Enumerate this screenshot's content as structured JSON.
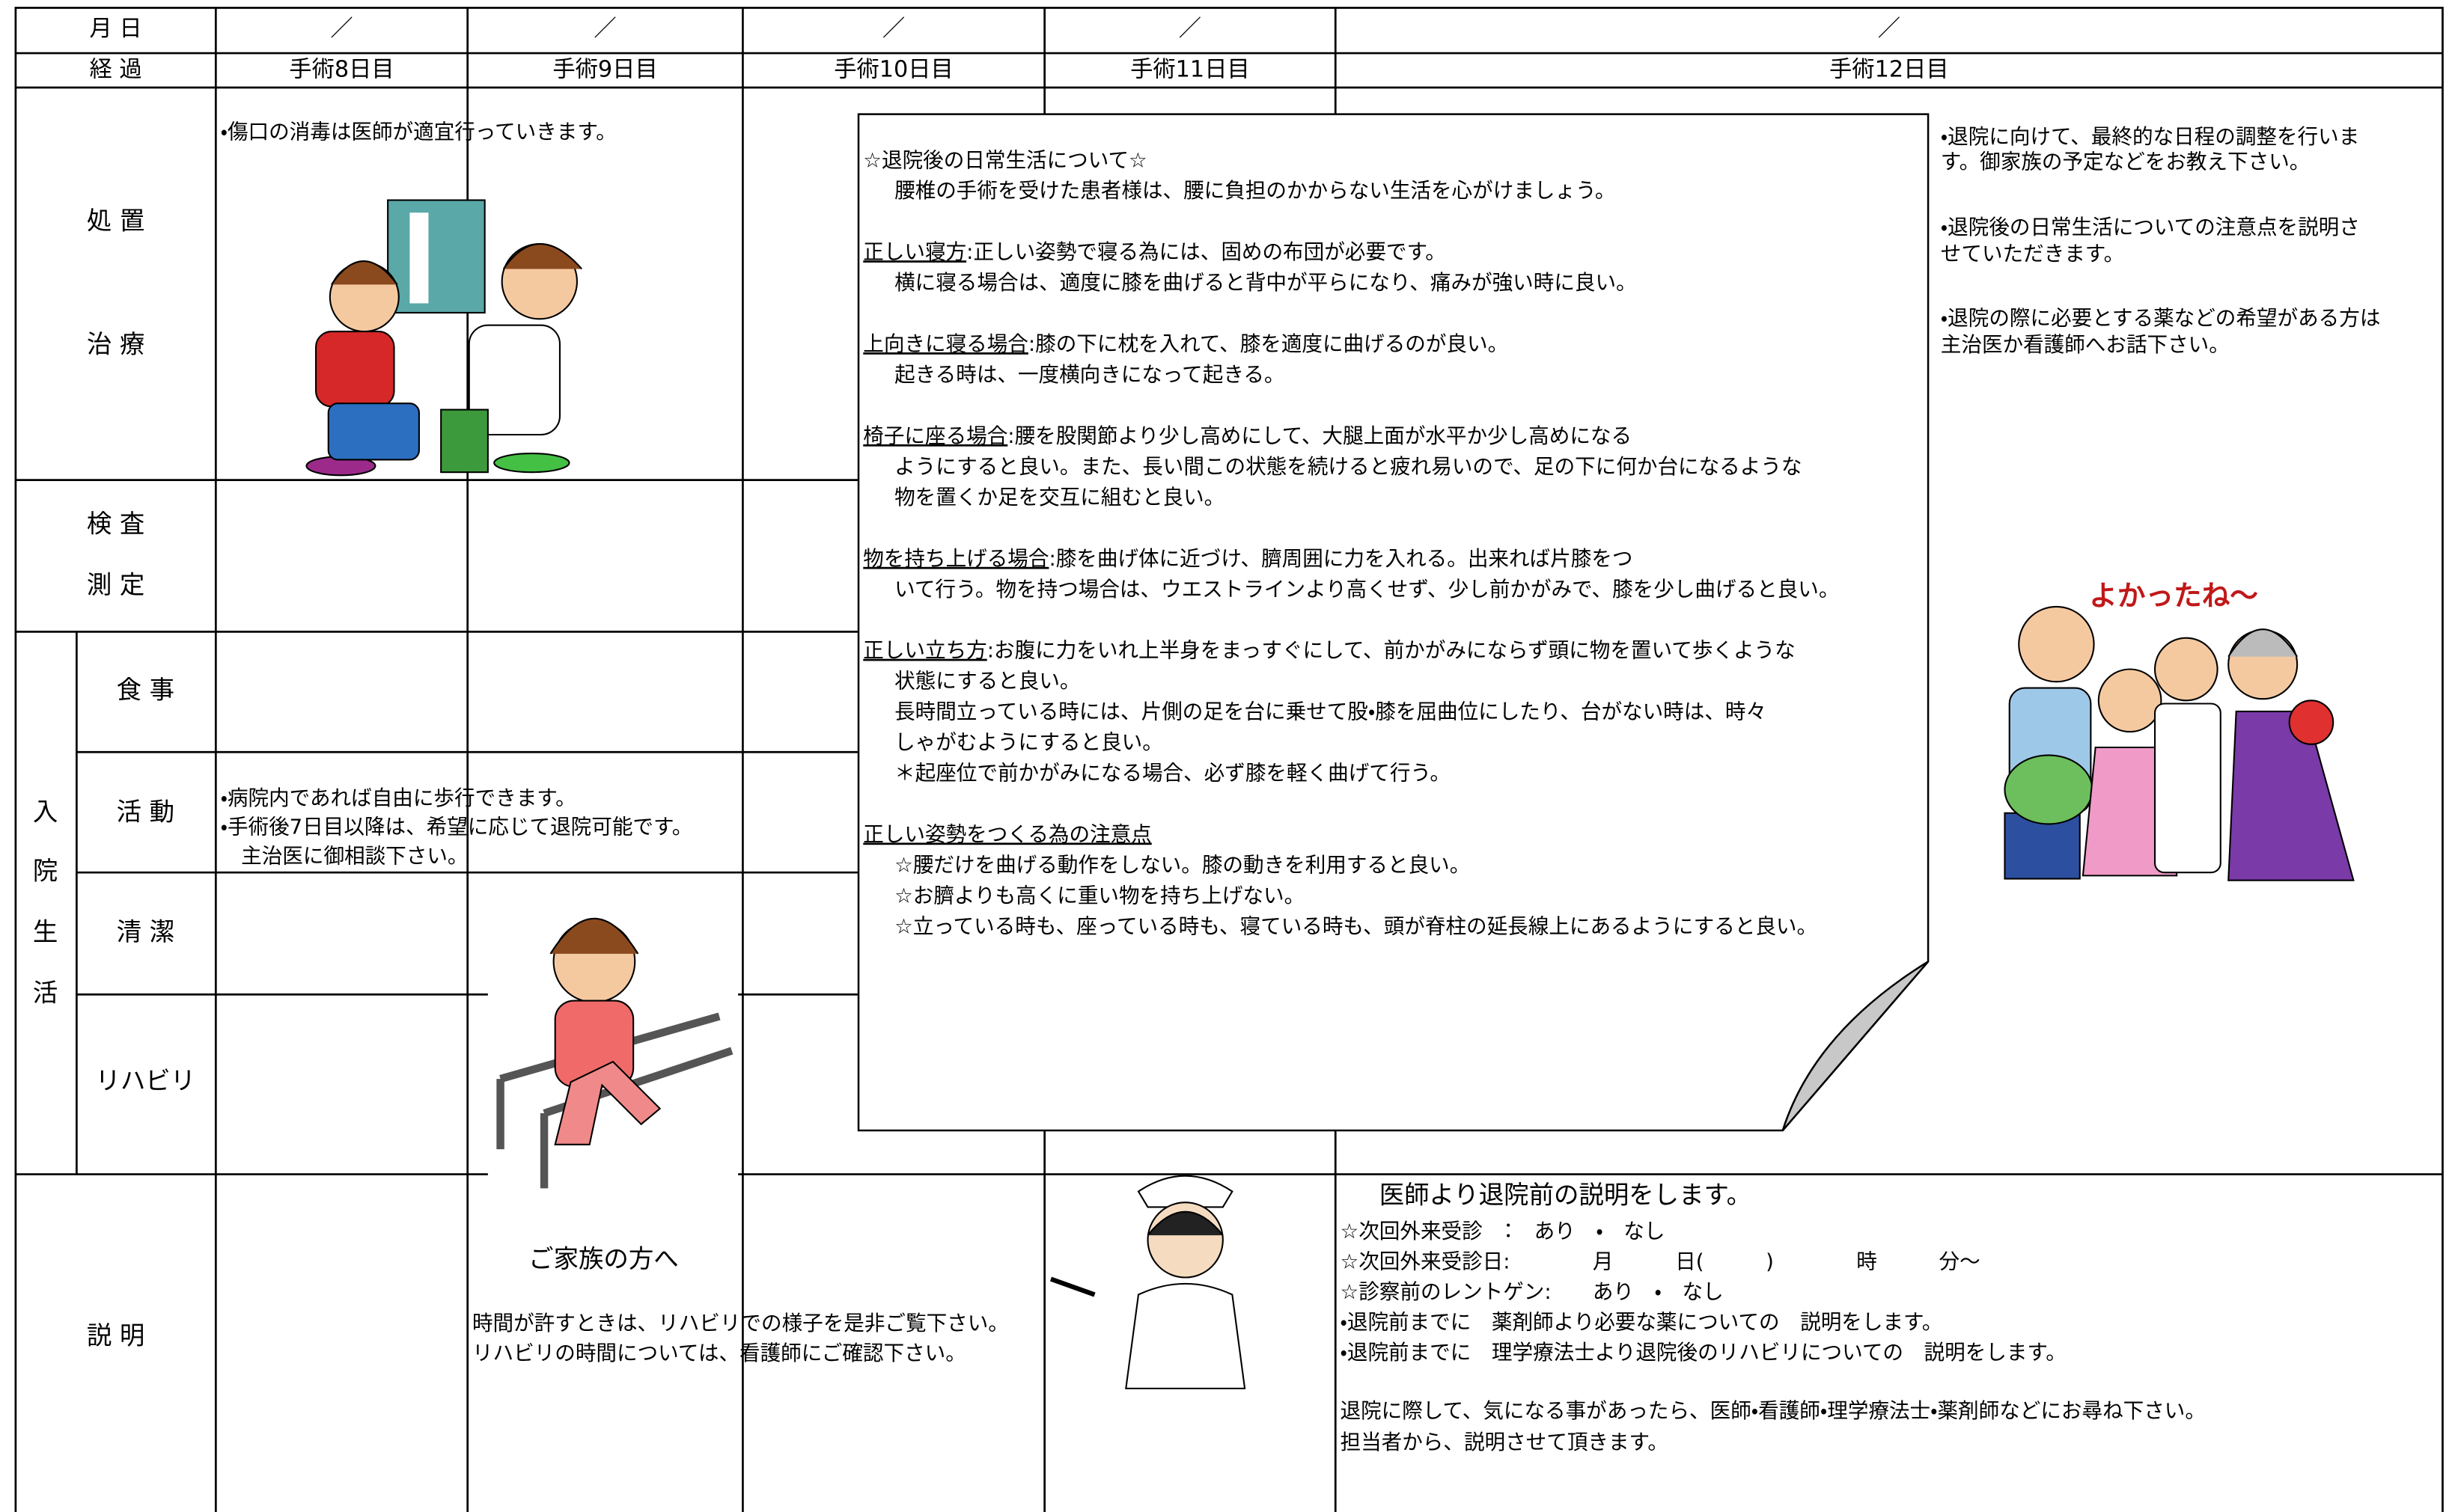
{
  "header": {
    "date_label": "月 日",
    "progress_label": "経 過",
    "dates": [
      "／",
      "／",
      "／",
      "／",
      "／"
    ],
    "days": [
      "手術8日目",
      "手術9日目",
      "手術10日目",
      "手術11日目",
      "手術12日目"
    ]
  },
  "rows": {
    "treatment": [
      "処 置",
      "治 療"
    ],
    "exam": [
      "検 査",
      "測 定"
    ],
    "hospital_life": [
      "入",
      "院",
      "生",
      "活"
    ],
    "meal": "食 事",
    "activity": "活 動",
    "cleanliness": "清 潔",
    "rehab": "リハビリ",
    "explanation": "説 明"
  },
  "cells": {
    "day8_treatment": "・傷口の消毒は医師が適宜行っていきます。",
    "day8_activity": [
      "・病院内であれば自由に歩行できます。",
      "・手術後7日目以降は、希望に応じて退院可能です。",
      "　主治医に御相談下さい。"
    ],
    "day12_treatment": [
      "・退院に向けて、最終的な日程の調整を行いま",
      "す。御家族の予定などをお教え下さい。",
      "・退院後の日常生活についての注意点を説明さ",
      "せていただきます。",
      "・退院の際に必要とする薬などの希望がある方は",
      "主治医か看護師へお話下さい。"
    ],
    "day9_explanation": {
      "title": "ご家族の方へ",
      "lines": [
        "時間が許すときは、リハビリでの様子を是非ご覧下さい。",
        "リハビリの時間については、看護師にご確認下さい。"
      ]
    },
    "day12_explanation": {
      "title": "医師より退院前の説明をします。",
      "lines": [
        "☆次回外来受診　：　あり　・　なし",
        "☆次回外来受診日:　　　　月　　　日(　　　)　　　　時　　　分～",
        "☆診察前のレントゲン:　　あり　・　なし",
        "・退院前までに　薬剤師より必要な薬についての　説明をします。",
        "・退院前までに　理学療法士より退院後のリハビリについての　説明をします。"
      ],
      "closing": [
        "退院に際して、気になる事があったら、医師・看護師・理学療法士・薬剤師などにお尋ね下さい。",
        "担当者から、説明させて頂きます。"
      ]
    }
  },
  "illustrations": {
    "congrats_caption": "よかったね～"
  },
  "note": {
    "intro": [
      "☆退院後の日常生活について☆",
      "腰椎の手術を受けた患者様は、腰に負担のかからない生活を心がけましょう。"
    ],
    "sections": [
      {
        "heading": "正しい寝方",
        "text": ":正しい姿勢で寝る為には、固めの布団が必要です。",
        "lines": [
          "横に寝る場合は、適度に膝を曲げると背中が平らになり、痛みが強い時に良い。"
        ]
      },
      {
        "heading": "上向きに寝る場合",
        "text": ":膝の下に枕を入れて、膝を適度に曲げるのが良い。",
        "lines": [
          "起きる時は、一度横向きになって起きる。"
        ]
      },
      {
        "heading": "椅子に座る場合",
        "text": ":腰を股関節より少し高めにして、大腿上面が水平か少し高めになる",
        "lines": [
          "ようにすると良い。また、長い間この状態を続けると疲れ易いので、足の下に何か台になるような",
          "物を置くか足を交互に組むと良い。"
        ]
      },
      {
        "heading": "物を持ち上げる場合",
        "text": ":膝を曲げ体に近づけ、臍周囲に力を入れる。出来れば片膝をつ",
        "lines": [
          "いて行う。物を持つ場合は、ウエストラインより高くせず、少し前かがみで、膝を少し曲げると良い。"
        ]
      },
      {
        "heading": "正しい立ち方",
        "text": ":お腹に力をいれ上半身をまっすぐにして、前かがみにならず頭に物を置いて歩くような",
        "lines": [
          "状態にすると良い。",
          "長時間立っている時には、片側の足を台に乗せて股・膝を屈曲位にしたり、台がない時は、時々",
          "しゃがむようにすると良い。",
          "＊起座位で前かがみになる場合、必ず膝を軽く曲げて行う。"
        ]
      },
      {
        "heading": "正しい姿勢をつくる為の注意点",
        "lines": [
          "☆腰だけを曲げる動作をしない。膝の動きを利用すると良い。",
          "☆お臍よりも高くに重い物を持ち上げない。",
          "☆立っている時も、座っている時も、寝ている時も、頭が脊柱の延長線上にあるようにすると良い。"
        ]
      }
    ]
  }
}
